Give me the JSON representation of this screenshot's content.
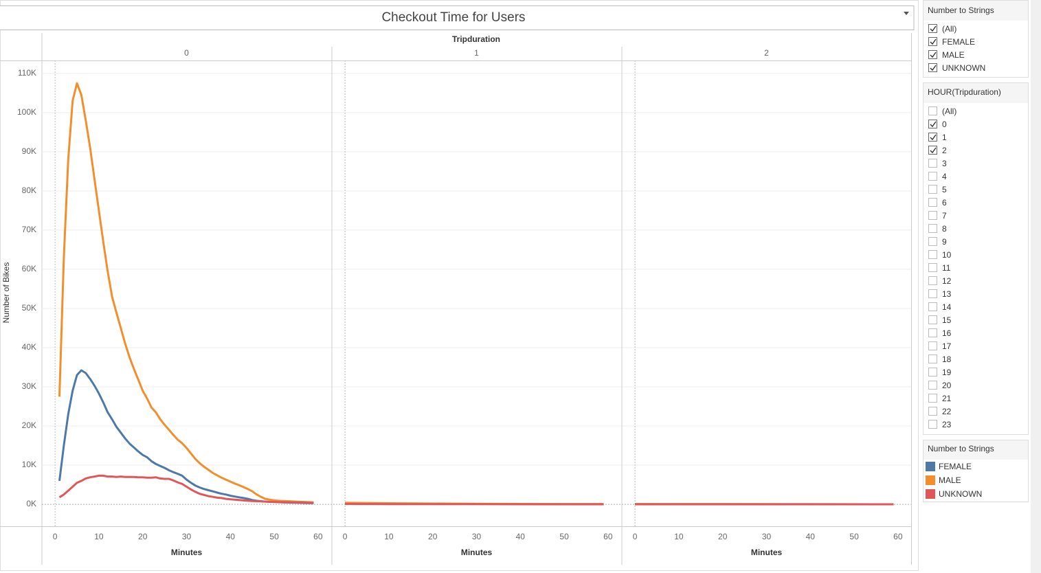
{
  "chart_data": {
    "type": "line",
    "title": "Checkout Time for Users",
    "facet_label": "Tripduration",
    "y_label": "Number of Bikes",
    "x_label": "Minutes",
    "ylim": [
      -5600,
      113300
    ],
    "yticks": [
      {
        "value": 0,
        "label": "0K"
      },
      {
        "value": 10000,
        "label": "10K"
      },
      {
        "value": 20000,
        "label": "20K"
      },
      {
        "value": 30000,
        "label": "30K"
      },
      {
        "value": 40000,
        "label": "40K"
      },
      {
        "value": 50000,
        "label": "50K"
      },
      {
        "value": 60000,
        "label": "60K"
      },
      {
        "value": 70000,
        "label": "70K"
      },
      {
        "value": 80000,
        "label": "80K"
      },
      {
        "value": 90000,
        "label": "90K"
      },
      {
        "value": 100000,
        "label": "100K"
      },
      {
        "value": 110000,
        "label": "110K"
      }
    ],
    "xlim": [
      -3,
      63
    ],
    "xticks": [
      0,
      10,
      20,
      30,
      40,
      50,
      60
    ],
    "grid": true,
    "series": [
      {
        "name": "FEMALE",
        "color": "#4e79a7"
      },
      {
        "name": "MALE",
        "color": "#f28e2b"
      },
      {
        "name": "UNKNOWN",
        "color": "#e15759"
      }
    ],
    "panels": [
      {
        "label": "0",
        "x": [
          1,
          2,
          3,
          4,
          5,
          6,
          7,
          8,
          9,
          10,
          11,
          12,
          13,
          14,
          15,
          16,
          17,
          18,
          19,
          20,
          21,
          22,
          23,
          24,
          25,
          26,
          27,
          28,
          29,
          30,
          31,
          32,
          33,
          34,
          35,
          36,
          37,
          38,
          39,
          40,
          41,
          42,
          43,
          44,
          45,
          46,
          47,
          48,
          49,
          50,
          51,
          52,
          53,
          54,
          55,
          56,
          57,
          58,
          59
        ],
        "values": [
          [
            6000,
            15000,
            23000,
            29000,
            33000,
            34200,
            33500,
            32000,
            30300,
            28300,
            26000,
            23500,
            21700,
            19800,
            18300,
            16800,
            15500,
            14500,
            13500,
            12600,
            12000,
            11000,
            10300,
            9800,
            9300,
            8700,
            8200,
            7800,
            7300,
            6300,
            5500,
            4800,
            4300,
            3900,
            3600,
            3300,
            3000,
            2700,
            2500,
            2200,
            2000,
            1800,
            1600,
            1400,
            1100,
            900,
            800,
            700,
            650,
            600,
            550,
            500,
            470,
            440,
            410,
            380,
            350,
            330,
            300
          ],
          [
            27500,
            63000,
            88000,
            103000,
            107500,
            104500,
            98000,
            91000,
            83000,
            75000,
            67000,
            59500,
            53000,
            49000,
            45000,
            41000,
            37500,
            34500,
            31800,
            29000,
            27000,
            24700,
            23500,
            21700,
            20300,
            19000,
            17700,
            16500,
            15600,
            14400,
            13000,
            11600,
            10500,
            9600,
            8800,
            8000,
            7400,
            6800,
            6300,
            5800,
            5300,
            4900,
            4400,
            3900,
            3300,
            2500,
            1900,
            1400,
            1200,
            1000,
            900,
            850,
            800,
            750,
            700,
            650,
            600,
            550,
            500
          ],
          [
            1800,
            2500,
            3500,
            4500,
            5500,
            6000,
            6600,
            6900,
            7100,
            7300,
            7300,
            7100,
            7100,
            7000,
            7100,
            7000,
            7000,
            7000,
            6900,
            6900,
            6800,
            6800,
            6900,
            6600,
            6500,
            6500,
            6100,
            5600,
            5200,
            4500,
            3800,
            3200,
            2700,
            2400,
            2100,
            1900,
            1700,
            1600,
            1400,
            1300,
            1200,
            1100,
            1000,
            900,
            850,
            800,
            750,
            700,
            650,
            600,
            580,
            560,
            540,
            520,
            500,
            470,
            450,
            420,
            400
          ]
        ]
      },
      {
        "label": "1",
        "x": [
          0,
          10,
          20,
          30,
          40,
          50,
          59
        ],
        "values": [
          [
            300,
            200,
            150,
            100,
            70,
            50,
            40
          ],
          [
            400,
            280,
            200,
            140,
            100,
            70,
            50
          ],
          [
            100,
            70,
            50,
            40,
            30,
            20,
            15
          ]
        ]
      },
      {
        "label": "2",
        "x": [
          0,
          10,
          20,
          30,
          40,
          50,
          59
        ],
        "values": [
          [
            60,
            50,
            40,
            30,
            25,
            20,
            15
          ],
          [
            80,
            60,
            50,
            40,
            30,
            25,
            20
          ],
          [
            20,
            15,
            12,
            10,
            8,
            6,
            5
          ]
        ]
      }
    ]
  },
  "filters": [
    {
      "title": "Number to Strings",
      "items": [
        {
          "label": "(All)",
          "checked": true
        },
        {
          "label": "FEMALE",
          "checked": true
        },
        {
          "label": "MALE",
          "checked": true
        },
        {
          "label": "UNKNOWN",
          "checked": true
        }
      ]
    },
    {
      "title": "HOUR(Tripduration)",
      "items": [
        {
          "label": "(All)",
          "checked": false
        },
        {
          "label": "0",
          "checked": true
        },
        {
          "label": "1",
          "checked": true
        },
        {
          "label": "2",
          "checked": true
        },
        {
          "label": "3",
          "checked": false
        },
        {
          "label": "4",
          "checked": false
        },
        {
          "label": "5",
          "checked": false
        },
        {
          "label": "6",
          "checked": false
        },
        {
          "label": "7",
          "checked": false
        },
        {
          "label": "8",
          "checked": false
        },
        {
          "label": "9",
          "checked": false
        },
        {
          "label": "10",
          "checked": false
        },
        {
          "label": "11",
          "checked": false
        },
        {
          "label": "12",
          "checked": false
        },
        {
          "label": "13",
          "checked": false
        },
        {
          "label": "14",
          "checked": false
        },
        {
          "label": "15",
          "checked": false
        },
        {
          "label": "16",
          "checked": false
        },
        {
          "label": "17",
          "checked": false
        },
        {
          "label": "18",
          "checked": false
        },
        {
          "label": "19",
          "checked": false
        },
        {
          "label": "20",
          "checked": false
        },
        {
          "label": "21",
          "checked": false
        },
        {
          "label": "22",
          "checked": false
        },
        {
          "label": "23",
          "checked": false
        }
      ]
    }
  ],
  "legend": {
    "title": "Number to Strings"
  }
}
